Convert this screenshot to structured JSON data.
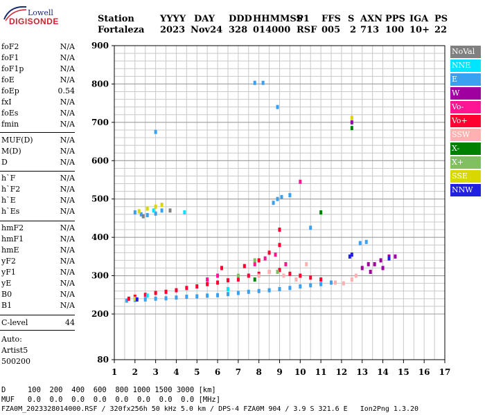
{
  "logo": {
    "top": "Lowell",
    "main": "DIGISONDE"
  },
  "header": {
    "labels": [
      "Station",
      "YYYY",
      "DAY",
      "DDD",
      "HHMMSS",
      "P1",
      "FFS",
      "S",
      "AXN",
      "PPS",
      "IGA",
      "PS"
    ],
    "values": [
      "Fortaleza",
      "2023",
      "Nov24",
      "328",
      "014000",
      "RSF",
      "005",
      "2",
      "713",
      "100",
      "10+",
      "22"
    ]
  },
  "params": {
    "group1": [
      {
        "name": "foF2",
        "value": "N/A"
      },
      {
        "name": "foF1",
        "value": "N/A"
      },
      {
        "name": "foF1p",
        "value": "N/A"
      },
      {
        "name": "foE",
        "value": "N/A"
      },
      {
        "name": "foEp",
        "value": "0.54"
      },
      {
        "name": "fxI",
        "value": "N/A"
      },
      {
        "name": "foEs",
        "value": "N/A"
      },
      {
        "name": "fmin",
        "value": "N/A"
      }
    ],
    "group2": [
      {
        "name": "MUF(D)",
        "value": "N/A"
      },
      {
        "name": "M(D)",
        "value": "N/A"
      },
      {
        "name": "D",
        "value": "N/A"
      }
    ],
    "group3": [
      {
        "name": "h`F",
        "value": "N/A"
      },
      {
        "name": "h`F2",
        "value": "N/A"
      },
      {
        "name": "h`E",
        "value": "N/A"
      },
      {
        "name": "h`Es",
        "value": "N/A"
      }
    ],
    "group4": [
      {
        "name": "hmF2",
        "value": "N/A"
      },
      {
        "name": "hmF1",
        "value": "N/A"
      },
      {
        "name": "hmE",
        "value": "N/A"
      },
      {
        "name": "yF2",
        "value": "N/A"
      },
      {
        "name": "yF1",
        "value": "N/A"
      },
      {
        "name": "yE",
        "value": "N/A"
      },
      {
        "name": "B0",
        "value": "N/A"
      },
      {
        "name": "B1",
        "value": "N/A"
      }
    ],
    "clevel": {
      "name": "C-level",
      "value": "44"
    },
    "auto": [
      "Auto:",
      "Artist5",
      "500200"
    ]
  },
  "legend": [
    {
      "label": "NoVal",
      "color": "#808080"
    },
    {
      "label": "NNE",
      "color": "#00e5ff"
    },
    {
      "label": "E",
      "color": "#3aa0f0"
    },
    {
      "label": "W",
      "color": "#a000a0"
    },
    {
      "label": "Vo-",
      "color": "#ff1493"
    },
    {
      "label": "Vo+",
      "color": "#ff0030"
    },
    {
      "label": "SSW",
      "color": "#ffb0b0"
    },
    {
      "label": "X-",
      "color": "#008000"
    },
    {
      "label": "X+",
      "color": "#80c060"
    },
    {
      "label": "SSE",
      "color": "#d8d800"
    },
    {
      "label": "NNW",
      "color": "#2020e0"
    }
  ],
  "bottom": {
    "line1": "D     100  200  400  600  800 1000 1500 3000 [km]",
    "line2": "MUF   0.0  0.0  0.0  0.0  0.0  0.0  0.0  0.0 [MHz]",
    "line3": "FZA0M_2023328014000.RSF / 320fx256h 50 kHz 5.0 km / DPS-4 FZA0M 904 / 3.9 S 321.6 E   Ion2Png 1.3.20"
  },
  "chart_data": {
    "type": "scatter",
    "title": "",
    "xlabel": "",
    "ylabel": "",
    "xlim": [
      1,
      17
    ],
    "ylim": [
      80,
      900
    ],
    "x_ticks": [
      1,
      2,
      3,
      4,
      5,
      6,
      7,
      8,
      9,
      10,
      11,
      12,
      13,
      14,
      15,
      16,
      17
    ],
    "y_ticks": [
      80,
      200,
      300,
      400,
      500,
      600,
      700,
      800,
      900
    ],
    "grid": true,
    "series": [
      {
        "name": "E",
        "color": "#3aa0f0",
        "points": [
          [
            1.6,
            235
          ],
          [
            2.0,
            237
          ],
          [
            2.5,
            238
          ],
          [
            3.0,
            240
          ],
          [
            3.5,
            241
          ],
          [
            4.0,
            243
          ],
          [
            4.5,
            245
          ],
          [
            5.0,
            246
          ],
          [
            5.5,
            248
          ],
          [
            6.0,
            249
          ],
          [
            6.5,
            252
          ],
          [
            7.0,
            255
          ],
          [
            7.5,
            258
          ],
          [
            8.0,
            260
          ],
          [
            8.5,
            262
          ],
          [
            9.0,
            265
          ],
          [
            9.5,
            268
          ],
          [
            10.0,
            272
          ],
          [
            10.5,
            275
          ],
          [
            11.0,
            278
          ],
          [
            11.5,
            282
          ],
          [
            2.0,
            465
          ],
          [
            2.3,
            460
          ],
          [
            2.6,
            458
          ],
          [
            3.0,
            462
          ],
          [
            3.3,
            470
          ],
          [
            8.9,
            500
          ],
          [
            9.1,
            505
          ],
          [
            8.7,
            490
          ],
          [
            7.8,
            803
          ],
          [
            8.2,
            803
          ],
          [
            8.9,
            740
          ],
          [
            3.0,
            675
          ],
          [
            12.9,
            385
          ],
          [
            13.2,
            388
          ],
          [
            10.5,
            425
          ],
          [
            9.5,
            510
          ]
        ]
      },
      {
        "name": "Vo+",
        "color": "#ff0030",
        "points": [
          [
            1.7,
            240
          ],
          [
            2.0,
            245
          ],
          [
            2.5,
            250
          ],
          [
            3.0,
            255
          ],
          [
            3.5,
            258
          ],
          [
            4.0,
            262
          ],
          [
            4.5,
            268
          ],
          [
            5.0,
            272
          ],
          [
            5.5,
            278
          ],
          [
            6.0,
            282
          ],
          [
            6.5,
            288
          ],
          [
            7.0,
            290
          ],
          [
            7.5,
            300
          ],
          [
            8.0,
            305
          ],
          [
            8.5,
            310
          ],
          [
            9.0,
            315
          ],
          [
            9.5,
            305
          ],
          [
            10.0,
            300
          ],
          [
            10.5,
            295
          ],
          [
            11.0,
            290
          ],
          [
            8.0,
            340
          ],
          [
            8.5,
            360
          ],
          [
            9.0,
            380
          ],
          [
            9.0,
            420
          ],
          [
            6.2,
            320
          ],
          [
            7.3,
            325
          ]
        ]
      },
      {
        "name": "Vo-",
        "color": "#ff1493",
        "points": [
          [
            7.8,
            330
          ],
          [
            8.3,
            345
          ],
          [
            8.8,
            355
          ],
          [
            9.3,
            330
          ],
          [
            10.0,
            545
          ],
          [
            6.0,
            300
          ],
          [
            5.5,
            290
          ]
        ]
      },
      {
        "name": "SSW",
        "color": "#ffb0b0",
        "points": [
          [
            8.0,
            300
          ],
          [
            8.5,
            310
          ],
          [
            9.2,
            300
          ],
          [
            9.8,
            290
          ],
          [
            10.3,
            330
          ],
          [
            11.7,
            282
          ],
          [
            12.1,
            280
          ],
          [
            12.5,
            290
          ],
          [
            12.7,
            300
          ]
        ]
      },
      {
        "name": "W",
        "color": "#a000a0",
        "points": [
          [
            13.0,
            320
          ],
          [
            13.3,
            330
          ],
          [
            13.6,
            330
          ],
          [
            14.0,
            320
          ],
          [
            14.3,
            350
          ],
          [
            14.6,
            350
          ],
          [
            12.5,
            700
          ],
          [
            13.4,
            310
          ],
          [
            13.9,
            340
          ]
        ]
      },
      {
        "name": "X-",
        "color": "#008000",
        "points": [
          [
            11.0,
            465
          ],
          [
            12.5,
            685
          ],
          [
            7.8,
            290
          ]
        ]
      },
      {
        "name": "X+",
        "color": "#80c060",
        "points": [
          [
            7.0,
            300
          ],
          [
            7.8,
            340
          ],
          [
            8.9,
            310
          ]
        ]
      },
      {
        "name": "SSE",
        "color": "#d8d800",
        "points": [
          [
            2.2,
            468
          ],
          [
            2.6,
            475
          ],
          [
            3.0,
            480
          ],
          [
            3.3,
            485
          ],
          [
            2.0,
            240
          ],
          [
            12.5,
            712
          ]
        ]
      },
      {
        "name": "NNW",
        "color": "#2020e0",
        "points": [
          [
            2.1,
            238
          ],
          [
            12.4,
            350
          ],
          [
            12.5,
            355
          ],
          [
            14.3,
            345
          ]
        ]
      },
      {
        "name": "NoVal",
        "color": "#808080",
        "points": [
          [
            2.4,
            455
          ],
          [
            3.7,
            470
          ]
        ]
      },
      {
        "name": "NNE",
        "color": "#00e5ff",
        "points": [
          [
            2.6,
            248
          ],
          [
            2.9,
            470
          ],
          [
            4.4,
            465
          ],
          [
            6.5,
            265
          ]
        ]
      }
    ]
  }
}
